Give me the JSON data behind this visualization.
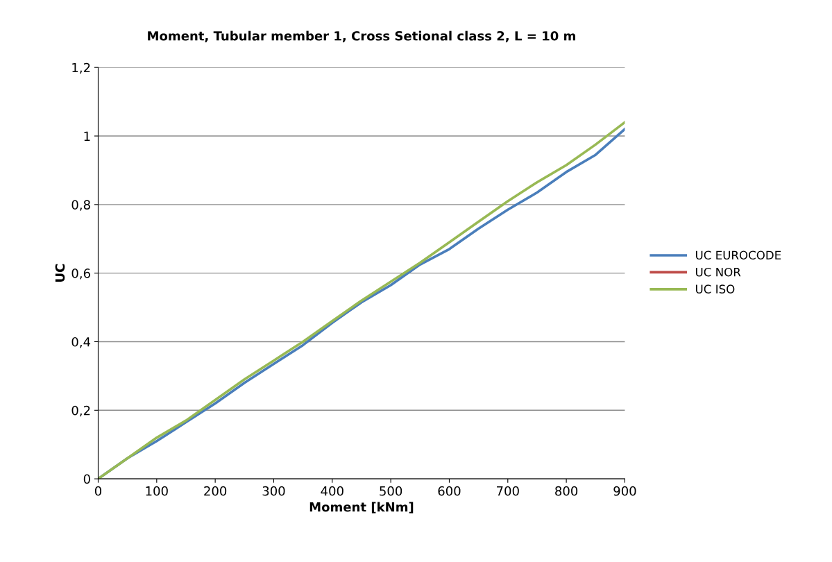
{
  "chart_data": {
    "type": "line",
    "title": "Moment, Tubular member 1, Cross Setional class 2, L = 10 m",
    "xlabel": "Moment [kNm]",
    "ylabel": "UC",
    "x": [
      0,
      50,
      100,
      150,
      200,
      250,
      300,
      350,
      400,
      450,
      500,
      550,
      600,
      650,
      700,
      750,
      800,
      850,
      900
    ],
    "series": [
      {
        "name": "UC EUROCODE",
        "color": "#4a7ebb",
        "values": [
          0,
          0.06,
          0.11,
          0.165,
          0.22,
          0.28,
          0.335,
          0.39,
          0.455,
          0.515,
          0.565,
          0.625,
          0.67,
          0.73,
          0.785,
          0.835,
          0.895,
          0.945,
          1.02
        ]
      },
      {
        "name": "UC NOR",
        "color": "#be4b48",
        "values": [
          null,
          null,
          null,
          null,
          null,
          null,
          null,
          null,
          null,
          null,
          null,
          null,
          null,
          null,
          null,
          null,
          null,
          null,
          null
        ]
      },
      {
        "name": "UC ISO",
        "color": "#98b954",
        "values": [
          0,
          0.06,
          0.12,
          0.17,
          0.23,
          0.29,
          0.345,
          0.4,
          0.46,
          0.52,
          0.575,
          0.63,
          0.69,
          0.75,
          0.81,
          0.865,
          0.915,
          0.975,
          1.04
        ]
      }
    ],
    "xlim": [
      0,
      900
    ],
    "xticks": [
      0,
      100,
      200,
      300,
      400,
      500,
      600,
      700,
      800,
      900
    ],
    "ylim": [
      0,
      1.2
    ],
    "yticks": [
      0,
      {
        "value": 0.2,
        "label": "0,2"
      },
      {
        "value": 0.4,
        "label": "0,4"
      },
      {
        "value": 0.6,
        "label": "0,6"
      },
      {
        "value": 0.8,
        "label": "0,8"
      },
      1,
      {
        "value": 1.2,
        "label": "1,2"
      }
    ],
    "grid": "y",
    "legend": "right",
    "marker": "none",
    "line_style": "solid"
  }
}
